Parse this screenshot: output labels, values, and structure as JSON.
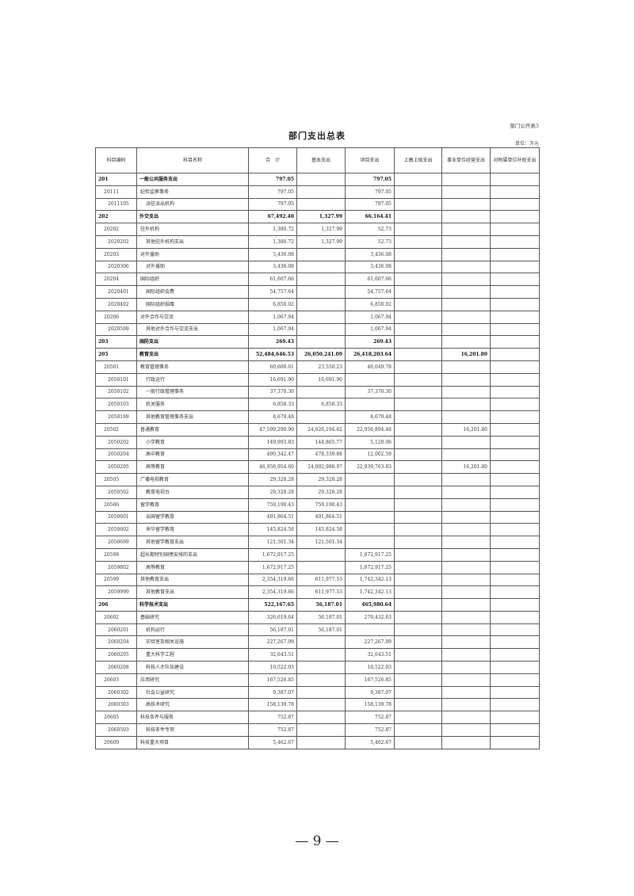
{
  "form_no": "部门公开表3",
  "title": "部门支出总表",
  "unit": "单位：万元",
  "columns": [
    "科目编码",
    "科目名称",
    "合　计",
    "基本支出",
    "项目支出",
    "上缴上级支出",
    "事业单位经营支出",
    "对附属单位补助支出"
  ],
  "rows": [
    {
      "level": 1,
      "code": "201",
      "name": "一般公共服务支出",
      "total": "797.05",
      "basic": "",
      "project": "797.05",
      "upper": "",
      "business": "",
      "subsidy": ""
    },
    {
      "level": 2,
      "code": "20111",
      "name": "纪检监察事务",
      "total": "797.05",
      "basic": "",
      "project": "797.05",
      "upper": "",
      "business": "",
      "subsidy": ""
    },
    {
      "level": 3,
      "code": "2011105",
      "name": "派驻派出机构",
      "total": "797.05",
      "basic": "",
      "project": "797.05",
      "upper": "",
      "business": "",
      "subsidy": ""
    },
    {
      "level": 1,
      "code": "202",
      "name": "外交支出",
      "total": "67,492.40",
      "basic": "1,327.99",
      "project": "66,164.41",
      "upper": "",
      "business": "",
      "subsidy": ""
    },
    {
      "level": 2,
      "code": "20202",
      "name": "驻外机构",
      "total": "1,380.72",
      "basic": "1,327.99",
      "project": "52.73",
      "upper": "",
      "business": "",
      "subsidy": ""
    },
    {
      "level": 3,
      "code": "2020202",
      "name": "其他驻外机构支出",
      "total": "1,380.72",
      "basic": "1,327.99",
      "project": "52.73",
      "upper": "",
      "business": "",
      "subsidy": ""
    },
    {
      "level": 2,
      "code": "20203",
      "name": "对外援助",
      "total": "3,436.08",
      "basic": "",
      "project": "3,436.08",
      "upper": "",
      "business": "",
      "subsidy": ""
    },
    {
      "level": 3,
      "code": "2020306",
      "name": "对外援助",
      "total": "3,436.08",
      "basic": "",
      "project": "3,436.08",
      "upper": "",
      "business": "",
      "subsidy": ""
    },
    {
      "level": 2,
      "code": "20204",
      "name": "国际组织",
      "total": "61,607.66",
      "basic": "",
      "project": "61,607.66",
      "upper": "",
      "business": "",
      "subsidy": ""
    },
    {
      "level": 3,
      "code": "2020401",
      "name": "国际组织会费",
      "total": "54,757.64",
      "basic": "",
      "project": "54,757.64",
      "upper": "",
      "business": "",
      "subsidy": ""
    },
    {
      "level": 3,
      "code": "2020402",
      "name": "国际组织捐赠",
      "total": "6,850.02",
      "basic": "",
      "project": "6,850.02",
      "upper": "",
      "business": "",
      "subsidy": ""
    },
    {
      "level": 2,
      "code": "20206",
      "name": "对外合作与交流",
      "total": "1,067.94",
      "basic": "",
      "project": "1,067.94",
      "upper": "",
      "business": "",
      "subsidy": ""
    },
    {
      "level": 3,
      "code": "2020599",
      "name": "其他对外合作与交流支出",
      "total": "1,067.94",
      "basic": "",
      "project": "1,067.94",
      "upper": "",
      "business": "",
      "subsidy": ""
    },
    {
      "level": 1,
      "code": "203",
      "name": "国防支出",
      "total": "269.43",
      "basic": "",
      "project": "269.43",
      "upper": "",
      "business": "",
      "subsidy": ""
    },
    {
      "level": 1,
      "code": "205",
      "name": "教育支出",
      "total": "52,484,646.53",
      "basic": "26,050,241.09",
      "project": "26,418,203.64",
      "upper": "",
      "business": "16,201.80",
      "subsidy": ""
    },
    {
      "level": 2,
      "code": "20501",
      "name": "教育管理事务",
      "total": "69,600.01",
      "basic": "23,550.23",
      "project": "46,049.78",
      "upper": "",
      "business": "",
      "subsidy": ""
    },
    {
      "level": 3,
      "code": "2050101",
      "name": "行政运行",
      "total": "16,691.90",
      "basic": "16,691.90",
      "project": "",
      "upper": "",
      "business": "",
      "subsidy": ""
    },
    {
      "level": 3,
      "code": "2050102",
      "name": "一般行政管理事务",
      "total": "37,370.30",
      "basic": "",
      "project": "37,370.30",
      "upper": "",
      "business": "",
      "subsidy": ""
    },
    {
      "level": 3,
      "code": "2050103",
      "name": "机关服务",
      "total": "6,858.33",
      "basic": "6,858.33",
      "project": "",
      "upper": "",
      "business": "",
      "subsidy": ""
    },
    {
      "level": 3,
      "code": "2050199",
      "name": "其他教育管理事务支出",
      "total": "8,679.48",
      "basic": "",
      "project": "8,679.48",
      "upper": "",
      "business": "",
      "subsidy": ""
    },
    {
      "level": 2,
      "code": "20502",
      "name": "普通教育",
      "total": "47,599,290.90",
      "basic": "24,626,194.62",
      "project": "22,956,894.48",
      "upper": "",
      "business": "16,201.80",
      "subsidy": ""
    },
    {
      "level": 3,
      "code": "2050202",
      "name": "小学教育",
      "total": "149,993.83",
      "basic": "144,865.77",
      "project": "5,128.06",
      "upper": "",
      "business": "",
      "subsidy": ""
    },
    {
      "level": 3,
      "code": "2050204",
      "name": "高中教育",
      "total": "490,342.47",
      "basic": "478,339.88",
      "project": "12,002.59",
      "upper": "",
      "business": "",
      "subsidy": ""
    },
    {
      "level": 3,
      "code": "2050205",
      "name": "高等教育",
      "total": "46,958,954.60",
      "basic": "24,002,988.97",
      "project": "22,939,763.83",
      "upper": "",
      "business": "16,201.80",
      "subsidy": ""
    },
    {
      "level": 2,
      "code": "20505",
      "name": "广播电视教育",
      "total": "29,328.28",
      "basic": "29,328.28",
      "project": "",
      "upper": "",
      "business": "",
      "subsidy": ""
    },
    {
      "level": 3,
      "code": "2050502",
      "name": "教育电视台",
      "total": "29,328.28",
      "basic": "29,328.28",
      "project": "",
      "upper": "",
      "business": "",
      "subsidy": ""
    },
    {
      "level": 2,
      "code": "20506",
      "name": "留学教育",
      "total": "759,190.43",
      "basic": "759,190.43",
      "project": "",
      "upper": "",
      "business": "",
      "subsidy": ""
    },
    {
      "level": 3,
      "code": "2050601",
      "name": "出国留学教育",
      "total": "491,864.51",
      "basic": "491,864.51",
      "project": "",
      "upper": "",
      "business": "",
      "subsidy": ""
    },
    {
      "level": 3,
      "code": "2050602",
      "name": "来华留学教育",
      "total": "145,824.58",
      "basic": "145,824.58",
      "project": "",
      "upper": "",
      "business": "",
      "subsidy": ""
    },
    {
      "level": 3,
      "code": "2050699",
      "name": "其他留学教育支出",
      "total": "121,501.34",
      "basic": "121,501.34",
      "project": "",
      "upper": "",
      "business": "",
      "subsidy": ""
    },
    {
      "level": 2,
      "code": "20598",
      "name": "超长期特别国债安排的支出",
      "total": "1,672,917.25",
      "basic": "",
      "project": "1,672,917.25",
      "upper": "",
      "business": "",
      "subsidy": ""
    },
    {
      "level": 3,
      "code": "2059802",
      "name": "高等教育",
      "total": "1,672,917.25",
      "basic": "",
      "project": "1,672,917.25",
      "upper": "",
      "business": "",
      "subsidy": ""
    },
    {
      "level": 2,
      "code": "20599",
      "name": "其他教育支出",
      "total": "2,354,319.66",
      "basic": "611,977.53",
      "project": "1,742,342.13",
      "upper": "",
      "business": "",
      "subsidy": ""
    },
    {
      "level": 3,
      "code": "2059999",
      "name": "其他教育支出",
      "total": "2,354,319.66",
      "basic": "611,977.53",
      "project": "1,742,342.13",
      "upper": "",
      "business": "",
      "subsidy": ""
    },
    {
      "level": 1,
      "code": "206",
      "name": "科学技术支出",
      "total": "522,167.65",
      "basic": "56,187.01",
      "project": "465,980.64",
      "upper": "",
      "business": "",
      "subsidy": ""
    },
    {
      "level": 2,
      "code": "20602",
      "name": "基础研究",
      "total": "326,619.64",
      "basic": "56,187.01",
      "project": "270,432.63",
      "upper": "",
      "business": "",
      "subsidy": ""
    },
    {
      "level": 3,
      "code": "2060201",
      "name": "机构运行",
      "total": "56,187.01",
      "basic": "56,187.01",
      "project": "",
      "upper": "",
      "business": "",
      "subsidy": ""
    },
    {
      "level": 3,
      "code": "2060204",
      "name": "实验室及相关设施",
      "total": "227,267.09",
      "basic": "",
      "project": "227,267.09",
      "upper": "",
      "business": "",
      "subsidy": ""
    },
    {
      "level": 3,
      "code": "2060205",
      "name": "重大科学工程",
      "total": "32,643.51",
      "basic": "",
      "project": "32,643.51",
      "upper": "",
      "business": "",
      "subsidy": ""
    },
    {
      "level": 3,
      "code": "2060208",
      "name": "科技人才队伍建设",
      "total": "10,522.03",
      "basic": "",
      "project": "10,522.03",
      "upper": "",
      "business": "",
      "subsidy": ""
    },
    {
      "level": 2,
      "code": "20603",
      "name": "应用研究",
      "total": "167,526.85",
      "basic": "",
      "project": "167,526.85",
      "upper": "",
      "business": "",
      "subsidy": ""
    },
    {
      "level": 3,
      "code": "2060302",
      "name": "社会公益研究",
      "total": "9,387.07",
      "basic": "",
      "project": "9,387.07",
      "upper": "",
      "business": "",
      "subsidy": ""
    },
    {
      "level": 3,
      "code": "2060303",
      "name": "高技术研究",
      "total": "158,139.78",
      "basic": "",
      "project": "158,139.78",
      "upper": "",
      "business": "",
      "subsidy": ""
    },
    {
      "level": 2,
      "code": "20605",
      "name": "科技条件与服务",
      "total": "752.87",
      "basic": "",
      "project": "752.87",
      "upper": "",
      "business": "",
      "subsidy": ""
    },
    {
      "level": 3,
      "code": "2060503",
      "name": "科技条件专项",
      "total": "752.87",
      "basic": "",
      "project": "752.87",
      "upper": "",
      "business": "",
      "subsidy": ""
    },
    {
      "level": 2,
      "code": "20609",
      "name": "科技重大项目",
      "total": "5,462.67",
      "basic": "",
      "project": "5,462.67",
      "upper": "",
      "business": "",
      "subsidy": ""
    }
  ],
  "page_number": "— 9 —"
}
